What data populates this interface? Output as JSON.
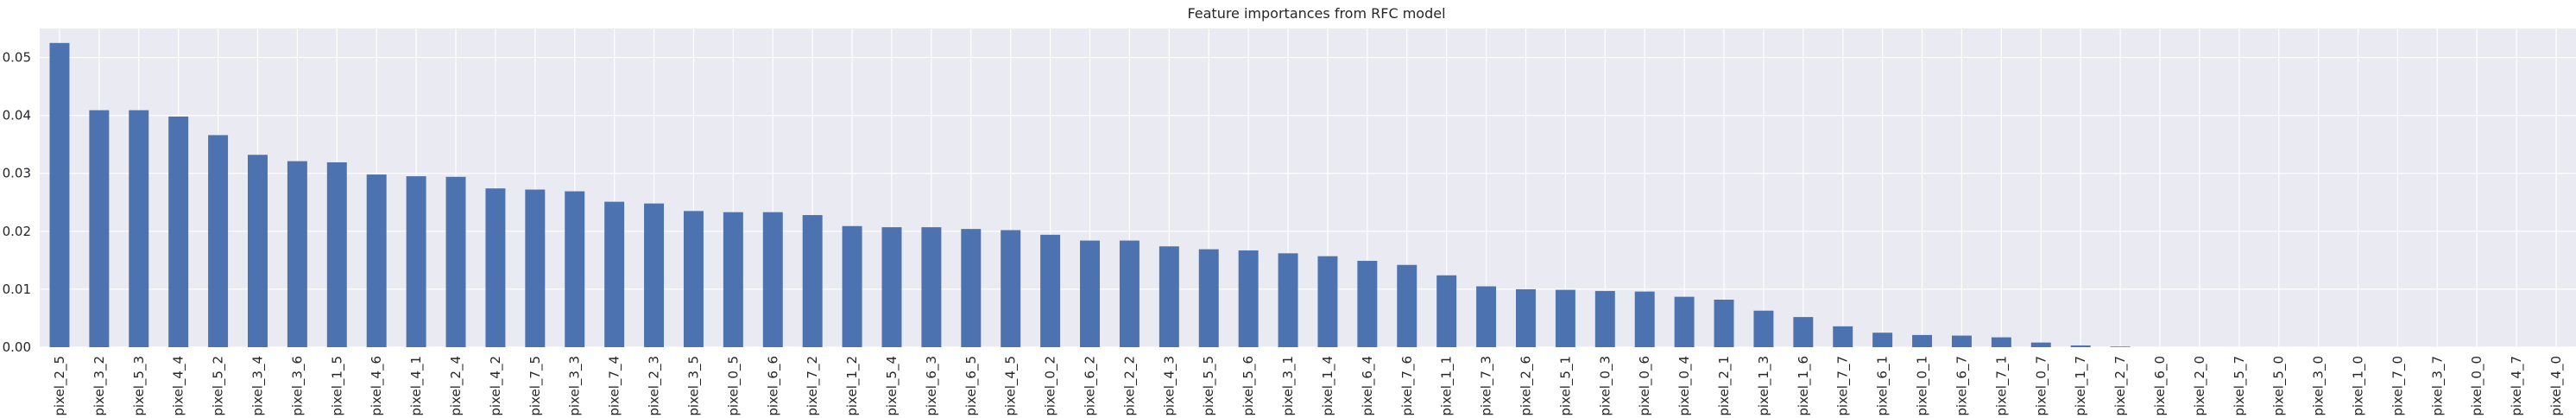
{
  "chart_data": {
    "type": "bar",
    "title": "Feature importances from RFC model",
    "xlabel": "",
    "ylabel": "",
    "ylim": [
      0,
      0.055
    ],
    "yticks": [
      0.0,
      0.01,
      0.02,
      0.03,
      0.04,
      0.05
    ],
    "ytick_labels": [
      "0.00",
      "0.01",
      "0.02",
      "0.03",
      "0.04",
      "0.05"
    ],
    "grid": true,
    "legend": "none",
    "bar_color": "#4c72b0",
    "background_color": "#eaeaf2",
    "grid_color": "#ffffff",
    "categories": [
      "pixel_2_5",
      "pixel_3_2",
      "pixel_5_3",
      "pixel_4_4",
      "pixel_5_2",
      "pixel_3_4",
      "pixel_3_6",
      "pixel_1_5",
      "pixel_4_6",
      "pixel_4_1",
      "pixel_2_4",
      "pixel_4_2",
      "pixel_7_5",
      "pixel_3_3",
      "pixel_7_4",
      "pixel_2_3",
      "pixel_3_5",
      "pixel_0_5",
      "pixel_6_6",
      "pixel_7_2",
      "pixel_1_2",
      "pixel_5_4",
      "pixel_6_3",
      "pixel_6_5",
      "pixel_4_5",
      "pixel_0_2",
      "pixel_6_2",
      "pixel_2_2",
      "pixel_4_3",
      "pixel_5_5",
      "pixel_5_6",
      "pixel_3_1",
      "pixel_1_4",
      "pixel_6_4",
      "pixel_7_6",
      "pixel_1_1",
      "pixel_7_3",
      "pixel_2_6",
      "pixel_5_1",
      "pixel_0_3",
      "pixel_0_6",
      "pixel_0_4",
      "pixel_2_1",
      "pixel_1_3",
      "pixel_1_6",
      "pixel_7_7",
      "pixel_6_1",
      "pixel_0_1",
      "pixel_6_7",
      "pixel_7_1",
      "pixel_0_7",
      "pixel_1_7",
      "pixel_2_7",
      "pixel_6_0",
      "pixel_2_0",
      "pixel_5_7",
      "pixel_5_0",
      "pixel_3_0",
      "pixel_1_0",
      "pixel_7_0",
      "pixel_3_7",
      "pixel_0_0",
      "pixel_4_7",
      "pixel_4_0"
    ],
    "values": [
      0.0525,
      0.0409,
      0.0409,
      0.0398,
      0.0366,
      0.0332,
      0.0321,
      0.0319,
      0.0298,
      0.0295,
      0.0294,
      0.0274,
      0.0272,
      0.0269,
      0.0251,
      0.0248,
      0.0235,
      0.0233,
      0.0233,
      0.0228,
      0.0209,
      0.0207,
      0.0207,
      0.0204,
      0.0202,
      0.0194,
      0.0184,
      0.0184,
      0.0174,
      0.0169,
      0.0167,
      0.0162,
      0.0157,
      0.0149,
      0.0142,
      0.0124,
      0.0105,
      0.01,
      0.0099,
      0.0097,
      0.0096,
      0.0087,
      0.0082,
      0.0063,
      0.0052,
      0.0036,
      0.0025,
      0.0021,
      0.002,
      0.0017,
      0.0008,
      0.0003,
      0.0001,
      0.0,
      0.0,
      0.0,
      0.0,
      0.0,
      0.0,
      0.0,
      0.0,
      0.0,
      0.0,
      0.0
    ]
  }
}
